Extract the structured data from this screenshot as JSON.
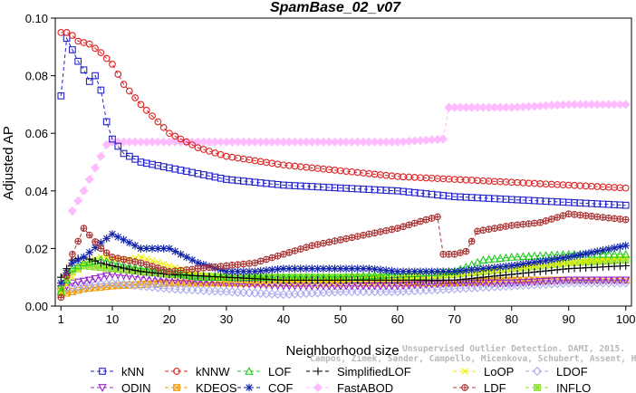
{
  "chart_data": {
    "type": "line",
    "title": "SpamBase_02_v07",
    "xlabel": "Neighborhood size",
    "ylabel": "Adjusted AP",
    "xlim": [
      0,
      101
    ],
    "ylim": [
      0.0,
      0.1
    ],
    "xticks": [
      1,
      10,
      20,
      30,
      40,
      50,
      60,
      70,
      80,
      90,
      100
    ],
    "yticks": [
      0.0,
      0.02,
      0.04,
      0.06,
      0.08,
      0.1
    ],
    "ytick_labels": [
      "0.00",
      "0.02",
      "0.04",
      "0.06",
      "0.08",
      "0.10"
    ],
    "grid": false,
    "legend_position": "bottom",
    "series": [
      {
        "name": "kNN",
        "color": "#2222cc",
        "marker": "square",
        "dash": "4,3",
        "points": [
          [
            1,
            0.073
          ],
          [
            2,
            0.093
          ],
          [
            3,
            0.089
          ],
          [
            4,
            0.085
          ],
          [
            5,
            0.082
          ],
          [
            6,
            0.078
          ],
          [
            7,
            0.08
          ],
          [
            8,
            0.075
          ],
          [
            9,
            0.064
          ],
          [
            10,
            0.058
          ],
          [
            12,
            0.053
          ],
          [
            15,
            0.05
          ],
          [
            20,
            0.048
          ],
          [
            25,
            0.046
          ],
          [
            30,
            0.044
          ],
          [
            40,
            0.042
          ],
          [
            50,
            0.041
          ],
          [
            60,
            0.04
          ],
          [
            70,
            0.038
          ],
          [
            80,
            0.037
          ],
          [
            90,
            0.036
          ],
          [
            100,
            0.035
          ]
        ]
      },
      {
        "name": "kNNW",
        "color": "#dd2222",
        "marker": "circle",
        "dash": "4,3",
        "points": [
          [
            1,
            0.095
          ],
          [
            2,
            0.095
          ],
          [
            3,
            0.094
          ],
          [
            4,
            0.092
          ],
          [
            6,
            0.091
          ],
          [
            8,
            0.088
          ],
          [
            10,
            0.084
          ],
          [
            12,
            0.077
          ],
          [
            15,
            0.07
          ],
          [
            20,
            0.06
          ],
          [
            25,
            0.055
          ],
          [
            30,
            0.052
          ],
          [
            40,
            0.049
          ],
          [
            50,
            0.047
          ],
          [
            60,
            0.045
          ],
          [
            70,
            0.044
          ],
          [
            80,
            0.043
          ],
          [
            90,
            0.042
          ],
          [
            100,
            0.041
          ]
        ]
      },
      {
        "name": "LOF",
        "color": "#22cc22",
        "marker": "triangle-up",
        "dash": "4,3",
        "points": [
          [
            1,
            0.005
          ],
          [
            3,
            0.013
          ],
          [
            5,
            0.015
          ],
          [
            8,
            0.016
          ],
          [
            10,
            0.015
          ],
          [
            15,
            0.013
          ],
          [
            20,
            0.012
          ],
          [
            25,
            0.01
          ],
          [
            30,
            0.01
          ],
          [
            40,
            0.01
          ],
          [
            50,
            0.01
          ],
          [
            60,
            0.011
          ],
          [
            70,
            0.012
          ],
          [
            75,
            0.016
          ],
          [
            80,
            0.017
          ],
          [
            90,
            0.018
          ],
          [
            100,
            0.018
          ]
        ]
      },
      {
        "name": "SimplifiedLOF",
        "color": "#000000",
        "marker": "plus",
        "dash": "4,3",
        "points": [
          [
            1,
            0.01
          ],
          [
            3,
            0.016
          ],
          [
            5,
            0.017
          ],
          [
            8,
            0.015
          ],
          [
            10,
            0.014
          ],
          [
            15,
            0.012
          ],
          [
            20,
            0.011
          ],
          [
            30,
            0.01
          ],
          [
            40,
            0.009
          ],
          [
            50,
            0.009
          ],
          [
            60,
            0.009
          ],
          [
            70,
            0.009
          ],
          [
            80,
            0.011
          ],
          [
            90,
            0.013
          ],
          [
            100,
            0.014
          ]
        ]
      },
      {
        "name": "LoOP",
        "color": "#eeee00",
        "marker": "cross",
        "dash": "4,3",
        "points": [
          [
            1,
            0.005
          ],
          [
            5,
            0.015
          ],
          [
            8,
            0.017
          ],
          [
            12,
            0.016
          ],
          [
            15,
            0.017
          ],
          [
            20,
            0.014
          ],
          [
            25,
            0.011
          ],
          [
            30,
            0.009
          ],
          [
            40,
            0.009
          ],
          [
            50,
            0.009
          ],
          [
            60,
            0.01
          ],
          [
            70,
            0.011
          ],
          [
            80,
            0.013
          ],
          [
            90,
            0.015
          ],
          [
            100,
            0.017
          ]
        ]
      },
      {
        "name": "LDOF",
        "color": "#aaaaee",
        "marker": "diamond",
        "dash": "4,3",
        "points": [
          [
            1,
            0.006
          ],
          [
            5,
            0.007
          ],
          [
            10,
            0.008
          ],
          [
            15,
            0.007
          ],
          [
            20,
            0.006
          ],
          [
            30,
            0.005
          ],
          [
            40,
            0.004
          ],
          [
            50,
            0.005
          ],
          [
            60,
            0.005
          ],
          [
            70,
            0.006
          ],
          [
            80,
            0.007
          ],
          [
            90,
            0.008
          ],
          [
            100,
            0.008
          ]
        ]
      },
      {
        "name": "ODIN",
        "color": "#9922cc",
        "marker": "triangle-down",
        "dash": "4,3",
        "points": [
          [
            1,
            0.006
          ],
          [
            3,
            0.008
          ],
          [
            6,
            0.009
          ],
          [
            10,
            0.011
          ],
          [
            15,
            0.01
          ],
          [
            20,
            0.009
          ],
          [
            30,
            0.008
          ],
          [
            40,
            0.007
          ],
          [
            50,
            0.007
          ],
          [
            60,
            0.007
          ],
          [
            70,
            0.008
          ],
          [
            80,
            0.008
          ],
          [
            90,
            0.009
          ],
          [
            100,
            0.009
          ]
        ]
      },
      {
        "name": "KDEOS",
        "color": "#ee9900",
        "marker": "square-x",
        "dash": "4,3",
        "points": [
          [
            1,
            0.004
          ],
          [
            5,
            0.006
          ],
          [
            10,
            0.007
          ],
          [
            20,
            0.008
          ],
          [
            30,
            0.008
          ],
          [
            40,
            0.008
          ],
          [
            50,
            0.008
          ],
          [
            60,
            0.008
          ],
          [
            70,
            0.008
          ],
          [
            80,
            0.009
          ],
          [
            90,
            0.009
          ],
          [
            100,
            0.009
          ]
        ]
      },
      {
        "name": "COF",
        "color": "#1122aa",
        "marker": "asterisk",
        "dash": "4,3",
        "points": [
          [
            1,
            0.008
          ],
          [
            3,
            0.015
          ],
          [
            5,
            0.017
          ],
          [
            8,
            0.022
          ],
          [
            10,
            0.025
          ],
          [
            12,
            0.023
          ],
          [
            15,
            0.02
          ],
          [
            20,
            0.02
          ],
          [
            23,
            0.017
          ],
          [
            25,
            0.015
          ],
          [
            30,
            0.012
          ],
          [
            35,
            0.012
          ],
          [
            40,
            0.013
          ],
          [
            45,
            0.013
          ],
          [
            50,
            0.013
          ],
          [
            55,
            0.013
          ],
          [
            60,
            0.012
          ],
          [
            70,
            0.012
          ],
          [
            80,
            0.014
          ],
          [
            90,
            0.017
          ],
          [
            100,
            0.021
          ]
        ]
      },
      {
        "name": "FastABOD",
        "color": "#ffbbff",
        "marker": "diamond-filled",
        "dash": "4,3",
        "points": [
          [
            3,
            0.033
          ],
          [
            5,
            0.04
          ],
          [
            7,
            0.048
          ],
          [
            9,
            0.056
          ],
          [
            10,
            0.057
          ],
          [
            15,
            0.057
          ],
          [
            20,
            0.057
          ],
          [
            30,
            0.057
          ],
          [
            40,
            0.057
          ],
          [
            50,
            0.057
          ],
          [
            60,
            0.057
          ],
          [
            68,
            0.058
          ],
          [
            69,
            0.069
          ],
          [
            70,
            0.069
          ],
          [
            80,
            0.069
          ],
          [
            90,
            0.07
          ],
          [
            100,
            0.07
          ]
        ]
      },
      {
        "name": "LDF",
        "color": "#aa3333",
        "marker": "circle-plus",
        "dash": "4,3",
        "points": [
          [
            1,
            0.003
          ],
          [
            3,
            0.018
          ],
          [
            5,
            0.027
          ],
          [
            8,
            0.02
          ],
          [
            10,
            0.017
          ],
          [
            15,
            0.015
          ],
          [
            20,
            0.012
          ],
          [
            25,
            0.013
          ],
          [
            30,
            0.014
          ],
          [
            35,
            0.015
          ],
          [
            40,
            0.018
          ],
          [
            45,
            0.021
          ],
          [
            50,
            0.023
          ],
          [
            55,
            0.025
          ],
          [
            60,
            0.027
          ],
          [
            65,
            0.03
          ],
          [
            67,
            0.031
          ],
          [
            68,
            0.018
          ],
          [
            70,
            0.018
          ],
          [
            72,
            0.019
          ],
          [
            74,
            0.026
          ],
          [
            80,
            0.028
          ],
          [
            85,
            0.029
          ],
          [
            90,
            0.032
          ],
          [
            95,
            0.031
          ],
          [
            100,
            0.03
          ]
        ]
      },
      {
        "name": "INFLO",
        "color": "#88dd22",
        "marker": "square-star",
        "dash": "4,3",
        "points": [
          [
            1,
            0.006
          ],
          [
            3,
            0.012
          ],
          [
            5,
            0.014
          ],
          [
            10,
            0.013
          ],
          [
            15,
            0.012
          ],
          [
            20,
            0.011
          ],
          [
            30,
            0.01
          ],
          [
            40,
            0.01
          ],
          [
            50,
            0.01
          ],
          [
            60,
            0.01
          ],
          [
            70,
            0.011
          ],
          [
            80,
            0.013
          ],
          [
            90,
            0.015
          ],
          [
            100,
            0.016
          ]
        ]
      }
    ],
    "legend_order": [
      "kNN",
      "kNNW",
      "LOF",
      "SimplifiedLOF",
      "LoOP",
      "LDOF",
      "ODIN",
      "KDEOS",
      "COF",
      "FastABOD",
      "LDF",
      "INFLO"
    ]
  },
  "watermark": {
    "line1": "Unsupervised Outlier Detection. DAMI, 2015.",
    "line2": "Campos, Zimek, Sander, Campello, Micenkova, Schubert, Assent, Houle"
  }
}
